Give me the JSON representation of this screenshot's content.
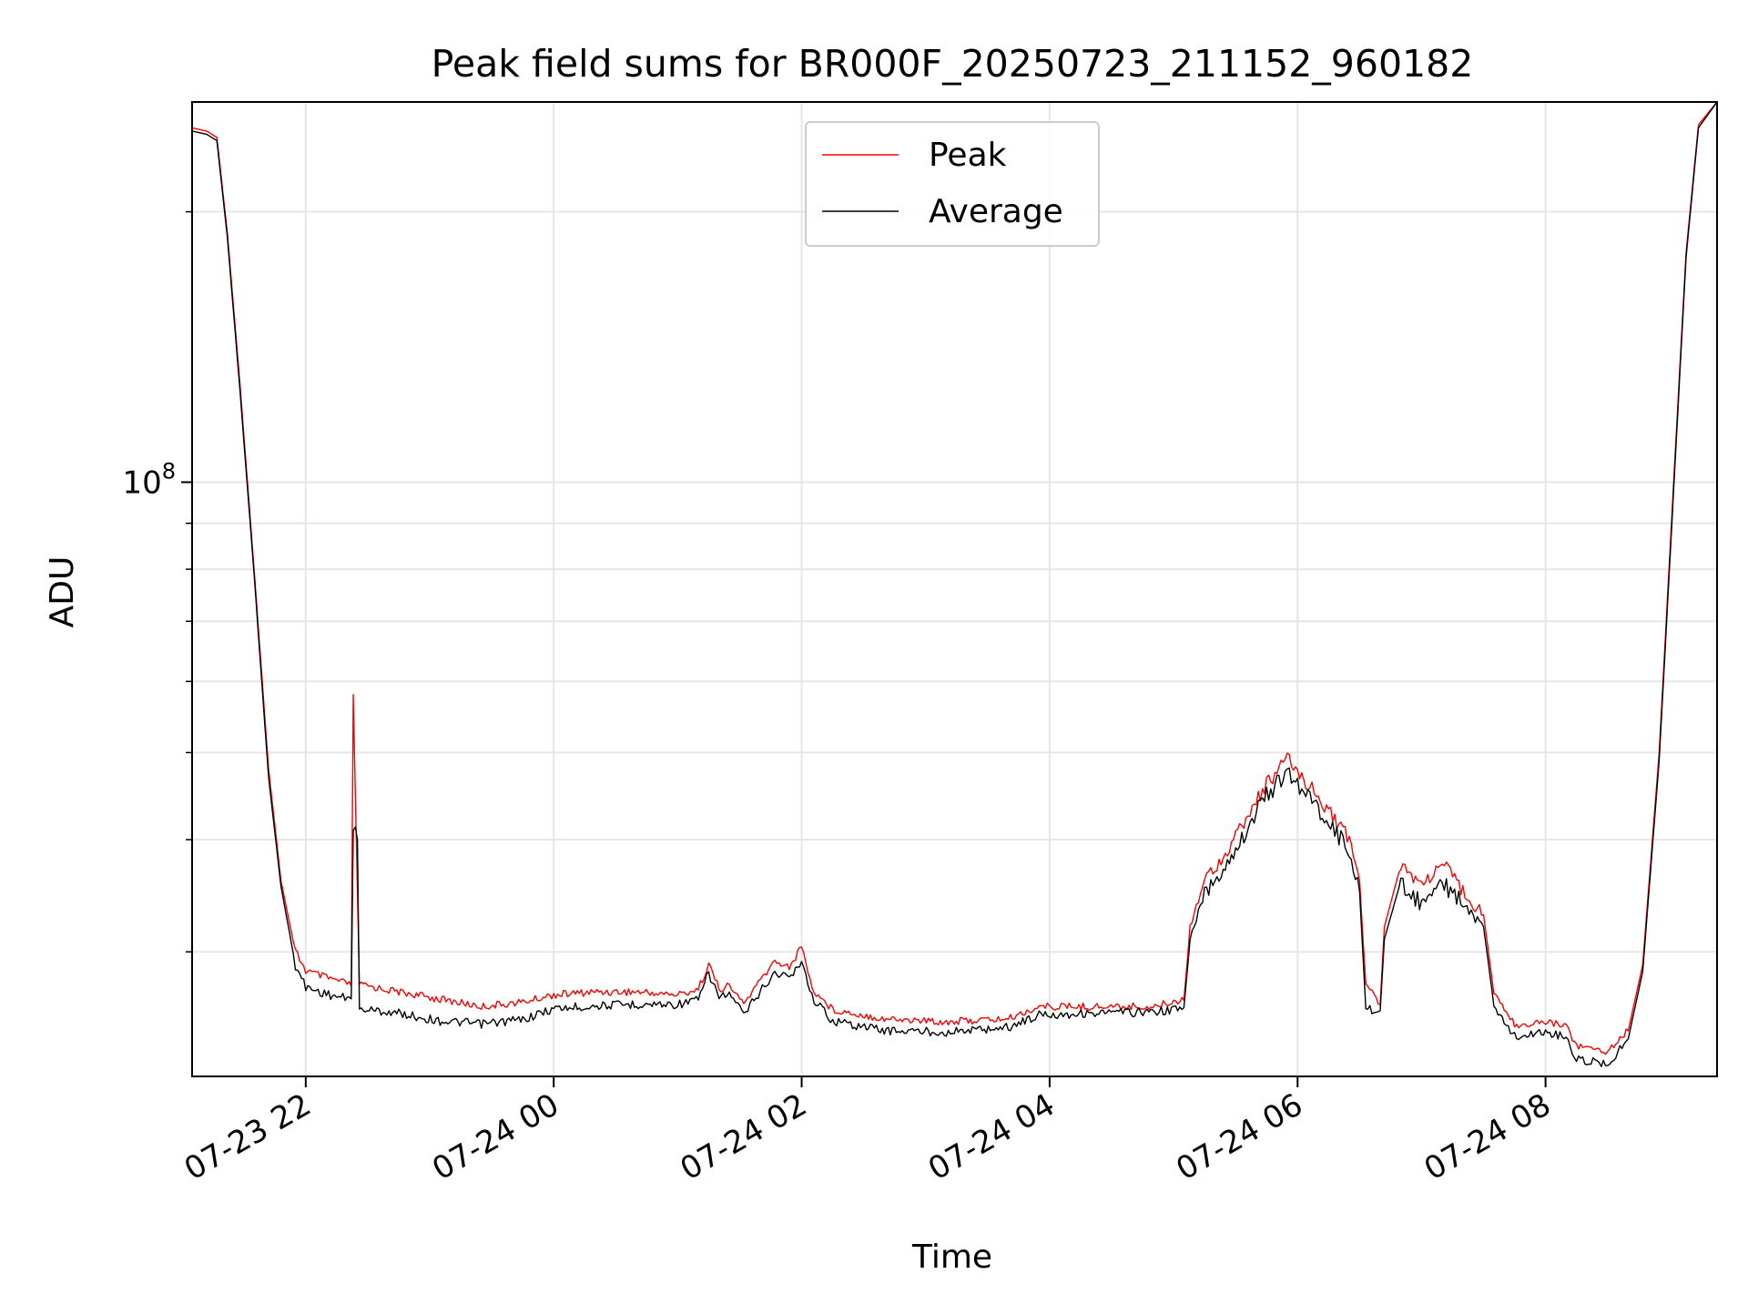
{
  "chart_data": {
    "type": "line",
    "title": "Peak field sums for BR000F_20250723_211152_960182",
    "xlabel": "Time",
    "ylabel": "ADU",
    "y_scale": "log",
    "grid": true,
    "legend_position": "upper center",
    "x_range": [
      "2025-07-23 21:05",
      "2025-07-24 09:23"
    ],
    "y_range": [
      21800000,
      265000000
    ],
    "x_ticks": [
      {
        "value": "2025-07-23 22:00",
        "label": "07-23 22"
      },
      {
        "value": "2025-07-24 00:00",
        "label": "07-24 00"
      },
      {
        "value": "2025-07-24 02:00",
        "label": "07-24 02"
      },
      {
        "value": "2025-07-24 04:00",
        "label": "07-24 04"
      },
      {
        "value": "2025-07-24 06:00",
        "label": "07-24 06"
      },
      {
        "value": "2025-07-24 08:00",
        "label": "07-24 08"
      }
    ],
    "y_major_tick": {
      "value": 100000000,
      "base": "10",
      "exponent": "8"
    },
    "y_minor_ticks": [
      30000000,
      40000000,
      50000000,
      60000000,
      70000000,
      80000000,
      90000000,
      200000000
    ],
    "series": [
      {
        "name": "Peak",
        "color": "#ff0000",
        "points": [
          [
            "2025-07-23 21:05",
            248000000.0
          ],
          [
            "2025-07-23 21:12",
            246000000.0
          ],
          [
            "2025-07-23 21:17",
            242000000.0
          ],
          [
            "2025-07-23 21:22",
            190000000.0
          ],
          [
            "2025-07-23 21:28",
            130000000.0
          ],
          [
            "2025-07-23 21:35",
            80000000.0
          ],
          [
            "2025-07-23 21:42",
            48000000.0
          ],
          [
            "2025-07-23 21:48",
            36000000.0
          ],
          [
            "2025-07-23 21:55",
            30000000.0
          ],
          [
            "2025-07-23 22:00",
            28500000.0
          ],
          [
            "2025-07-23 22:10",
            28000000.0
          ],
          [
            "2025-07-23 22:22",
            27500000.0
          ],
          [
            "2025-07-23 22:23",
            58000000.0
          ],
          [
            "2025-07-23 22:24",
            45000000.0
          ],
          [
            "2025-07-23 22:26",
            27500000.0
          ],
          [
            "2025-07-23 22:45",
            27000000.0
          ],
          [
            "2025-07-23 23:05",
            26500000.0
          ],
          [
            "2025-07-23 23:25",
            26000000.0
          ],
          [
            "2025-07-23 23:45",
            26300000.0
          ],
          [
            "2025-07-24 00:00",
            26800000.0
          ],
          [
            "2025-07-24 00:20",
            27000000.0
          ],
          [
            "2025-07-24 00:40",
            27000000.0
          ],
          [
            "2025-07-24 01:00",
            26800000.0
          ],
          [
            "2025-07-24 01:10",
            27200000.0
          ],
          [
            "2025-07-24 01:15",
            29000000.0
          ],
          [
            "2025-07-24 01:20",
            27200000.0
          ],
          [
            "2025-07-24 01:25",
            27400000.0
          ],
          [
            "2025-07-24 01:32",
            26200000.0
          ],
          [
            "2025-07-24 01:40",
            27800000.0
          ],
          [
            "2025-07-24 01:47",
            29200000.0
          ],
          [
            "2025-07-24 01:55",
            28800000.0
          ],
          [
            "2025-07-24 02:00",
            30500000.0
          ],
          [
            "2025-07-24 02:05",
            27200000.0
          ],
          [
            "2025-07-24 02:15",
            25800000.0
          ],
          [
            "2025-07-24 02:40",
            25200000.0
          ],
          [
            "2025-07-24 03:10",
            25000000.0
          ],
          [
            "2025-07-24 03:40",
            25200000.0
          ],
          [
            "2025-07-24 03:55",
            26000000.0
          ],
          [
            "2025-07-24 04:20",
            26000000.0
          ],
          [
            "2025-07-24 04:50",
            26000000.0
          ],
          [
            "2025-07-24 05:05",
            26500000.0
          ],
          [
            "2025-07-24 05:08",
            32000000.0
          ],
          [
            "2025-07-24 05:15",
            36000000.0
          ],
          [
            "2025-07-24 05:25",
            38500000.0
          ],
          [
            "2025-07-24 05:35",
            42000000.0
          ],
          [
            "2025-07-24 05:45",
            46000000.0
          ],
          [
            "2025-07-24 05:55",
            49000000.0
          ],
          [
            "2025-07-24 06:05",
            46000000.0
          ],
          [
            "2025-07-24 06:15",
            43000000.0
          ],
          [
            "2025-07-24 06:25",
            40000000.0
          ],
          [
            "2025-07-24 06:30",
            36000000.0
          ],
          [
            "2025-07-24 06:33",
            27500000.0
          ],
          [
            "2025-07-24 06:40",
            26200000.0
          ],
          [
            "2025-07-24 06:42",
            32000000.0
          ],
          [
            "2025-07-24 06:50",
            37500000.0
          ],
          [
            "2025-07-24 07:00",
            35500000.0
          ],
          [
            "2025-07-24 07:10",
            37500000.0
          ],
          [
            "2025-07-24 07:20",
            35000000.0
          ],
          [
            "2025-07-24 07:30",
            33000000.0
          ],
          [
            "2025-07-24 07:35",
            27000000.0
          ],
          [
            "2025-07-24 07:45",
            24800000.0
          ],
          [
            "2025-07-24 08:00",
            25000000.0
          ],
          [
            "2025-07-24 08:10",
            24800000.0
          ],
          [
            "2025-07-24 08:15",
            23500000.0
          ],
          [
            "2025-07-24 08:30",
            23200000.0
          ],
          [
            "2025-07-24 08:40",
            24500000.0
          ],
          [
            "2025-07-24 08:47",
            29000000.0
          ],
          [
            "2025-07-24 08:55",
            50000000.0
          ],
          [
            "2025-07-24 09:02",
            100000000.0
          ],
          [
            "2025-07-24 09:08",
            180000000.0
          ],
          [
            "2025-07-24 09:14",
            250000000.0
          ],
          [
            "2025-07-24 09:23",
            265000000.0
          ]
        ]
      },
      {
        "name": "Average",
        "color": "#000000",
        "points": [
          [
            "2025-07-23 21:05",
            246000000.0
          ],
          [
            "2025-07-23 21:12",
            244000000.0
          ],
          [
            "2025-07-23 21:17",
            240000000.0
          ],
          [
            "2025-07-23 21:22",
            188000000.0
          ],
          [
            "2025-07-23 21:28",
            128000000.0
          ],
          [
            "2025-07-23 21:35",
            79000000.0
          ],
          [
            "2025-07-23 21:42",
            47000000.0
          ],
          [
            "2025-07-23 21:48",
            35500000.0
          ],
          [
            "2025-07-23 21:55",
            29000000.0
          ],
          [
            "2025-07-23 22:00",
            27500000.0
          ],
          [
            "2025-07-23 22:10",
            27000000.0
          ],
          [
            "2025-07-23 22:22",
            26600000.0
          ],
          [
            "2025-07-23 22:23",
            42000000.0
          ],
          [
            "2025-07-23 22:25",
            40000000.0
          ],
          [
            "2025-07-23 22:26",
            26000000.0
          ],
          [
            "2025-07-23 22:45",
            25700000.0
          ],
          [
            "2025-07-23 23:05",
            25200000.0
          ],
          [
            "2025-07-23 23:25",
            25000000.0
          ],
          [
            "2025-07-23 23:45",
            25300000.0
          ],
          [
            "2025-07-24 00:00",
            26000000.0
          ],
          [
            "2025-07-24 00:20",
            26200000.0
          ],
          [
            "2025-07-24 00:40",
            26300000.0
          ],
          [
            "2025-07-24 01:00",
            26300000.0
          ],
          [
            "2025-07-24 01:10",
            26600000.0
          ],
          [
            "2025-07-24 01:15",
            28500000.0
          ],
          [
            "2025-07-24 01:20",
            26800000.0
          ],
          [
            "2025-07-24 01:25",
            27000000.0
          ],
          [
            "2025-07-24 01:32",
            25600000.0
          ],
          [
            "2025-07-24 01:40",
            27200000.0
          ],
          [
            "2025-07-24 01:47",
            28500000.0
          ],
          [
            "2025-07-24 01:55",
            28200000.0
          ],
          [
            "2025-07-24 02:00",
            29500000.0
          ],
          [
            "2025-07-24 02:05",
            26800000.0
          ],
          [
            "2025-07-24 02:15",
            25200000.0
          ],
          [
            "2025-07-24 02:40",
            24600000.0
          ],
          [
            "2025-07-24 03:10",
            24500000.0
          ],
          [
            "2025-07-24 03:40",
            24800000.0
          ],
          [
            "2025-07-24 03:55",
            25600000.0
          ],
          [
            "2025-07-24 04:20",
            25700000.0
          ],
          [
            "2025-07-24 04:50",
            25800000.0
          ],
          [
            "2025-07-24 05:05",
            26000000.0
          ],
          [
            "2025-07-24 05:08",
            31000000.0
          ],
          [
            "2025-07-24 05:15",
            35000000.0
          ],
          [
            "2025-07-24 05:25",
            37500000.0
          ],
          [
            "2025-07-24 05:35",
            41000000.0
          ],
          [
            "2025-07-24 05:45",
            45000000.0
          ],
          [
            "2025-07-24 05:55",
            47500000.0
          ],
          [
            "2025-07-24 06:05",
            45000000.0
          ],
          [
            "2025-07-24 06:15",
            42000000.0
          ],
          [
            "2025-07-24 06:25",
            39000000.0
          ],
          [
            "2025-07-24 06:30",
            35000000.0
          ],
          [
            "2025-07-24 06:33",
            26000000.0
          ],
          [
            "2025-07-24 06:40",
            25800000.0
          ],
          [
            "2025-07-24 06:42",
            31000000.0
          ],
          [
            "2025-07-24 06:50",
            36000000.0
          ],
          [
            "2025-07-24 07:00",
            34000000.0
          ],
          [
            "2025-07-24 07:10",
            36000000.0
          ],
          [
            "2025-07-24 07:20",
            34000000.0
          ],
          [
            "2025-07-24 07:30",
            32000000.0
          ],
          [
            "2025-07-24 07:35",
            26200000.0
          ],
          [
            "2025-07-24 07:45",
            24200000.0
          ],
          [
            "2025-07-24 08:00",
            24500000.0
          ],
          [
            "2025-07-24 08:10",
            24200000.0
          ],
          [
            "2025-07-24 08:15",
            22800000.0
          ],
          [
            "2025-07-24 08:30",
            22600000.0
          ],
          [
            "2025-07-24 08:40",
            24000000.0
          ],
          [
            "2025-07-24 08:47",
            28500000.0
          ],
          [
            "2025-07-24 08:55",
            49000000.0
          ],
          [
            "2025-07-24 09:02",
            98000000.0
          ],
          [
            "2025-07-24 09:08",
            178000000.0
          ],
          [
            "2025-07-24 09:14",
            248000000.0
          ],
          [
            "2025-07-24 09:23",
            265000000.0
          ]
        ]
      }
    ]
  }
}
